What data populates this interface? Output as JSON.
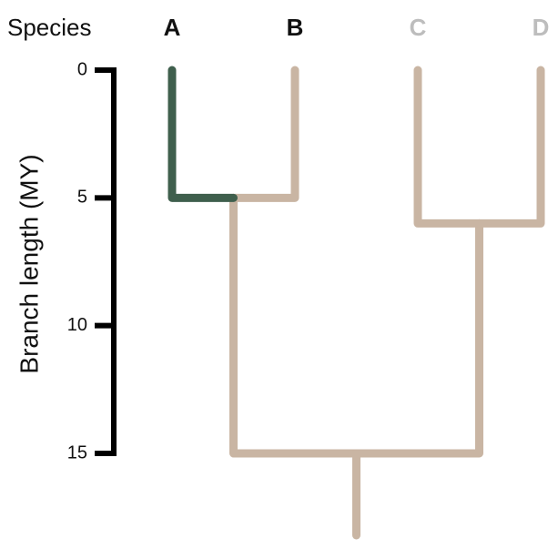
{
  "species_header": "Species",
  "axis": {
    "label": "Branch length (MY)",
    "ylim": [
      0,
      15
    ],
    "yticks": [
      0,
      5,
      10,
      15
    ]
  },
  "tree": {
    "height": 15,
    "branch_color": "#c9b5a3",
    "children": [
      {
        "height": 5,
        "branch_color": "#c9b5a3",
        "children": [
          {
            "label": "A",
            "label_color": "#111111",
            "height": 0,
            "branch_color": "#3f5f4d"
          },
          {
            "label": "B",
            "label_color": "#111111",
            "height": 0,
            "branch_color": "#c9b5a3"
          }
        ]
      },
      {
        "height": 6,
        "branch_color": "#c9b5a3",
        "children": [
          {
            "label": "C",
            "label_color": "#bdbdbd",
            "height": 0,
            "branch_color": "#c9b5a3"
          },
          {
            "label": "D",
            "label_color": "#bdbdbd",
            "height": 0,
            "branch_color": "#c9b5a3"
          }
        ]
      }
    ]
  }
}
